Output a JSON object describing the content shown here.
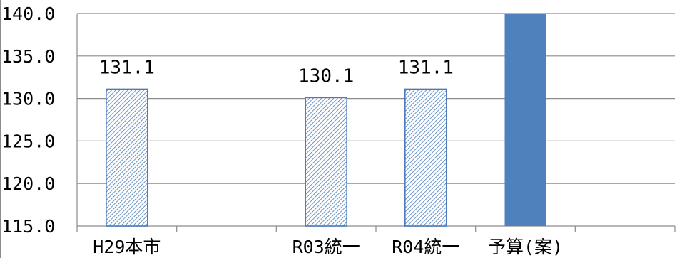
{
  "chart_data": {
    "type": "bar",
    "categories": [
      "H29本市",
      "",
      "R03統一",
      "R04統一",
      "予算(案)",
      ""
    ],
    "values": [
      131.1,
      null,
      130.1,
      131.1,
      140.0,
      null
    ],
    "data_labels": [
      "131.1",
      "",
      "130.1",
      "131.1",
      "",
      ""
    ],
    "highlight": [
      false,
      false,
      false,
      false,
      true,
      false
    ],
    "ylim": [
      115.0,
      140.0
    ],
    "y_ticks": [
      "115.0",
      "120.0",
      "125.0",
      "130.0",
      "135.0",
      "140.0"
    ],
    "title": "",
    "xlabel": "",
    "ylabel": "",
    "grid": true,
    "colors": {
      "hatch_fill": "#ffffff",
      "hatch_stroke": "#4a7ab8",
      "solid_fill": "#4f81bd",
      "grid": "#8c8c8c"
    }
  }
}
